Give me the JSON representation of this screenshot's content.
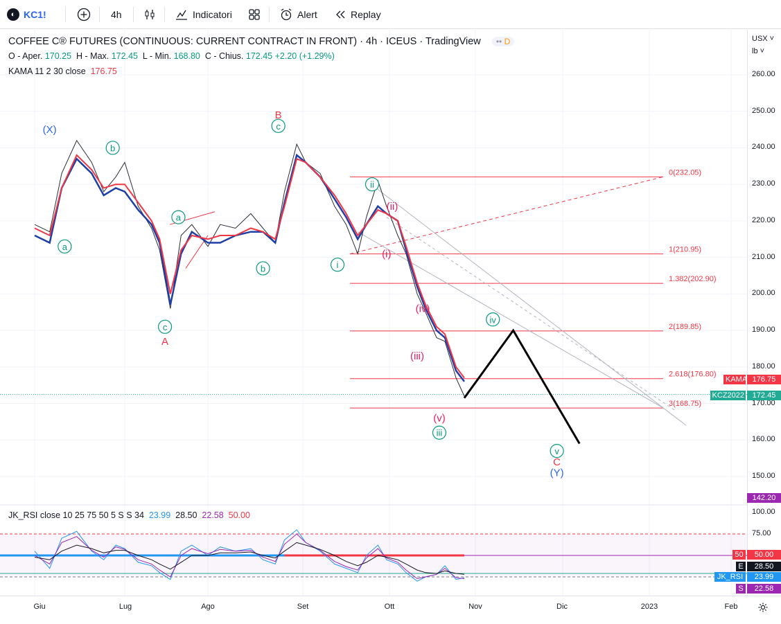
{
  "toolbar": {
    "symbol": "KC1!",
    "interval": "4h",
    "indicators_label": "Indicatori",
    "alert_label": "Alert",
    "replay_label": "Replay"
  },
  "legend": {
    "title": "COFFEE C® FUTURES (CONTINUOUS: CURRENT CONTRACT IN FRONT) · 4h · ICEUS · TradingView",
    "badge": "D",
    "ohlc": {
      "o_label": "O - Aper.",
      "o": "170.25",
      "h_label": "H - Max.",
      "h": "172.45",
      "l_label": "L - Min.",
      "l": "168.80",
      "c_label": "C - Chius.",
      "c": "172.45",
      "change": "+2.20 (+1.29%)"
    },
    "kama_label": "KAMA 11 2 30 close",
    "kama_value": "176.75",
    "rsi_label": "JK_RSI close 10 25 75 50 5 S S 34",
    "rsi_values": [
      "23.99",
      "28.50",
      "22.58",
      "50.00"
    ]
  },
  "price_axis": {
    "currency": "USX",
    "unit": "lb",
    "ticks": [
      "260.00",
      "250.00",
      "240.00",
      "230.00",
      "220.00",
      "210.00",
      "200.00",
      "190.00",
      "180.00",
      "170.00",
      "160.00",
      "150.00"
    ],
    "rsi_ticks": [
      "100.00",
      "75.00"
    ],
    "labels": [
      {
        "tag": "KAMA",
        "value": "176.75",
        "color": "#f23645"
      },
      {
        "tag": "KCZ2022",
        "value": "172.45",
        "color": "#22ab94"
      },
      {
        "tag": "",
        "value": "142.20",
        "color": "#9c27b0"
      },
      {
        "tag": "50",
        "value": "50.00",
        "color": "#f23645"
      },
      {
        "tag": "E",
        "value": "28.50",
        "color": "#131722"
      },
      {
        "tag": "JK_RSI",
        "value": "23.99",
        "color": "#2196f3"
      },
      {
        "tag": "S",
        "value": "22.58",
        "color": "#9c27b0"
      }
    ]
  },
  "time_axis": {
    "ticks": [
      "Giu",
      "Lug",
      "Ago",
      "Set",
      "Ott",
      "Nov",
      "Dic",
      "2023",
      "Feb"
    ]
  },
  "chart_data": {
    "type": "line",
    "title": "COFFEE C® FUTURES (CONTINUOUS: CURRENT CONTRACT IN FRONT) · 4h · ICEUS",
    "xlabel": "",
    "ylabel": "",
    "ylim": [
      142,
      262
    ],
    "x": [
      "Jun 1",
      "Jun 6",
      "Jun 10",
      "Jun 15",
      "Jun 20",
      "Jun 24",
      "Jun 28",
      "Jul 1",
      "Jul 6",
      "Jul 11",
      "Jul 14",
      "Jul 18",
      "Jul 22",
      "Jul 26",
      "Aug 1",
      "Aug 5",
      "Aug 10",
      "Aug 15",
      "Aug 19",
      "Aug 23",
      "Aug 26",
      "Aug 30",
      "Sep 2",
      "Sep 7",
      "Sep 12",
      "Sep 16",
      "Sep 20",
      "Sep 23",
      "Sep 27",
      "Sep 30",
      "Oct 4",
      "Oct 7",
      "Oct 11",
      "Oct 14",
      "Oct 18",
      "Oct 21",
      "Oct 25",
      "Oct 28"
    ],
    "series": [
      {
        "color": "#2a2e39",
        "values": [
          219,
          217,
          233,
          242,
          236,
          228,
          232,
          236,
          224,
          218,
          212,
          196,
          216,
          219,
          213,
          219,
          218,
          222,
          218,
          214,
          228,
          241,
          236,
          233,
          224,
          219,
          211,
          221,
          231,
          224,
          216,
          211,
          200,
          195,
          188,
          187,
          177,
          172
        ]
      },
      {
        "color": "#1e3fa8",
        "values": [
          216,
          214,
          229,
          237,
          233,
          227,
          229,
          228,
          223,
          219,
          214,
          197,
          211,
          217,
          214,
          214,
          216,
          217,
          217,
          214,
          225,
          238,
          236,
          232,
          226,
          221,
          215,
          219,
          224,
          222,
          220,
          212,
          202,
          196,
          190,
          188,
          179,
          176
        ]
      },
      {
        "color": "#f23645",
        "values": [
          218,
          216,
          229,
          238,
          234,
          229,
          230,
          230,
          225,
          220,
          215,
          200,
          212,
          216,
          215,
          216,
          216,
          218,
          217,
          215,
          224,
          237,
          236,
          232,
          227,
          222,
          216,
          219,
          223,
          222,
          220,
          213,
          203,
          197,
          191,
          189,
          180,
          177
        ]
      }
    ],
    "fib_levels": [
      {
        "label": "0(232.05)",
        "value": 232.05
      },
      {
        "label": "1(210.95)",
        "value": 210.95
      },
      {
        "label": "1.382(202.90)",
        "value": 202.9
      },
      {
        "label": "2(189.85)",
        "value": 189.85
      },
      {
        "label": "2.618(176.80)",
        "value": 176.8
      },
      {
        "label": "3(168.75)",
        "value": 168.75
      }
    ],
    "last_price": 172.45,
    "projection": [
      {
        "x": "Oct 28",
        "y": 171.5
      },
      {
        "x": "Nov 14",
        "y": 190
      },
      {
        "x": "Dec 7",
        "y": 159
      }
    ],
    "wave_labels": [
      {
        "text": "(X)",
        "x": "Jun 6",
        "y": 245,
        "color": "#2962ff"
      },
      {
        "text": "a",
        "x": "Jun 11",
        "y": 213,
        "color": "#089981"
      },
      {
        "text": "b",
        "x": "Jun 27",
        "y": 240,
        "color": "#089981"
      },
      {
        "text": "c",
        "x": "Jul 16",
        "y": 191,
        "color": "#089981"
      },
      {
        "text": "A",
        "x": "Jul 16",
        "y": 187,
        "color": "#f23645"
      },
      {
        "text": "a",
        "x": "Jul 21",
        "y": 221,
        "color": "#089981"
      },
      {
        "text": "b",
        "x": "Aug 19",
        "y": 207,
        "color": "#089981"
      },
      {
        "text": "B",
        "x": "Aug 24",
        "y": 249,
        "color": "#f23645"
      },
      {
        "text": "c",
        "x": "Aug 24",
        "y": 246,
        "color": "#089981"
      },
      {
        "text": "i",
        "x": "Sep 13",
        "y": 208,
        "color": "#089981"
      },
      {
        "text": "ii",
        "x": "Sep 25",
        "y": 230,
        "color": "#089981"
      },
      {
        "text": "(ii)",
        "x": "Oct 2",
        "y": 224,
        "color": "#e91e63"
      },
      {
        "text": "(i)",
        "x": "Sep 30",
        "y": 211,
        "color": "#e91e63"
      },
      {
        "text": "(iv)",
        "x": "Oct 13",
        "y": 196,
        "color": "#e91e63"
      },
      {
        "text": "iv",
        "x": "Nov 7",
        "y": 193,
        "color": "#089981"
      },
      {
        "text": "(iii)",
        "x": "Oct 11",
        "y": 183,
        "color": "#e91e63"
      },
      {
        "text": "(v)",
        "x": "Oct 19",
        "y": 166,
        "color": "#e91e63"
      },
      {
        "text": "iii",
        "x": "Oct 19",
        "y": 162,
        "color": "#089981"
      },
      {
        "text": "v",
        "x": "Nov 29",
        "y": 157,
        "color": "#089981"
      },
      {
        "text": "C",
        "x": "Nov 29",
        "y": 154,
        "color": "#f23645"
      },
      {
        "text": "(Y)",
        "x": "Nov 29",
        "y": 151,
        "color": "#2962ff"
      }
    ],
    "rsi": {
      "ylim": [
        0,
        100
      ],
      "x": [
        "Jun 1",
        "Jun 6",
        "Jun 10",
        "Jun 15",
        "Jun 20",
        "Jun 24",
        "Jun 28",
        "Jul 1",
        "Jul 6",
        "Jul 11",
        "Jul 14",
        "Jul 18",
        "Jul 22",
        "Jul 26",
        "Aug 1",
        "Aug 5",
        "Aug 10",
        "Aug 15",
        "Aug 19",
        "Aug 23",
        "Aug 26",
        "Aug 30",
        "Sep 2",
        "Sep 7",
        "Sep 12",
        "Sep 16",
        "Sep 20",
        "Sep 23",
        "Sep 27",
        "Sep 30",
        "Oct 4",
        "Oct 7",
        "Oct 11",
        "Oct 14",
        "Oct 18",
        "Oct 21",
        "Oct 25",
        "Oct 28"
      ],
      "series": [
        {
          "color": "#2196f3",
          "values": [
            55,
            35,
            70,
            78,
            55,
            45,
            62,
            58,
            42,
            38,
            30,
            22,
            55,
            62,
            50,
            60,
            55,
            58,
            45,
            40,
            68,
            80,
            65,
            55,
            40,
            35,
            30,
            50,
            62,
            45,
            40,
            30,
            20,
            25,
            28,
            38,
            22,
            24
          ]
        },
        {
          "color": "#9c27b0",
          "values": [
            50,
            40,
            65,
            72,
            56,
            48,
            60,
            57,
            45,
            40,
            33,
            25,
            50,
            58,
            52,
            57,
            55,
            56,
            48,
            43,
            63,
            75,
            65,
            56,
            43,
            37,
            33,
            47,
            58,
            47,
            42,
            33,
            23,
            25,
            28,
            35,
            24,
            23
          ]
        },
        {
          "color": "#131722",
          "values": [
            48,
            45,
            55,
            62,
            58,
            53,
            56,
            56,
            50,
            45,
            40,
            34,
            42,
            50,
            50,
            53,
            53,
            54,
            50,
            47,
            55,
            65,
            62,
            57,
            50,
            43,
            38,
            42,
            50,
            48,
            45,
            40,
            33,
            30,
            29,
            32,
            29,
            28
          ]
        }
      ],
      "levels": [
        75,
        50,
        25
      ],
      "long_mean": 50
    }
  }
}
